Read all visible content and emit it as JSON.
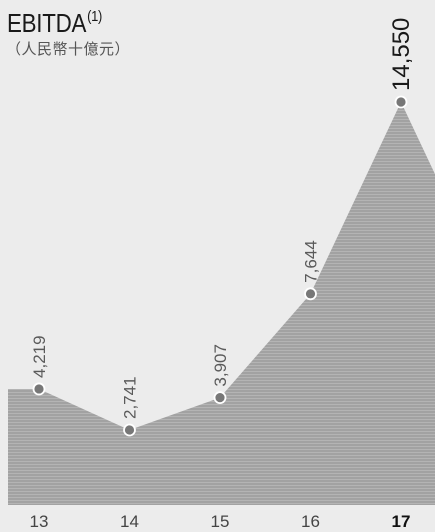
{
  "chart_data": {
    "type": "area",
    "title": "EBITDA",
    "title_footnote": "(1)",
    "subtitle": "（人民幣十億元）",
    "categories": [
      "13",
      "14",
      "15",
      "16",
      "17"
    ],
    "values": [
      4219,
      2741,
      3907,
      7644,
      14550
    ],
    "value_labels": [
      "4,219",
      "2,741",
      "3,907",
      "7,644",
      "14,550"
    ],
    "highlight_last": true,
    "colors": {
      "area": "#a6a6a6",
      "marker": "#777777",
      "marker_stroke": "#ffffff",
      "background": "#ececec"
    }
  }
}
